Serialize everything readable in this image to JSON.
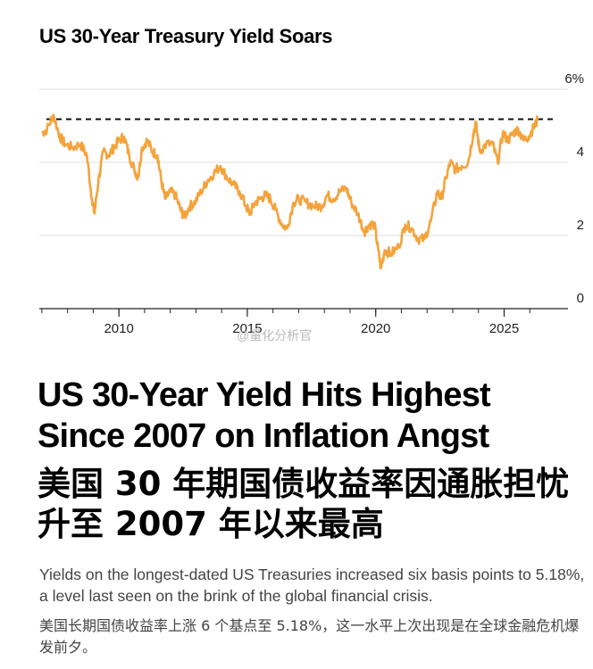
{
  "chart_title": "US 30-Year Treasury Yield Soars",
  "headline": "US 30-Year Yield Hits Highest Since 2007 on Inflation Angst",
  "headline_cn": "美国 30 年期国债收益率因通胀担忧升至 2007 年以来最高",
  "deck": "Yields on the longest-dated US Treasuries increased six basis points to 5.18%, a level last seen on the brink of the global financial crisis.",
  "deck_cn": "美国长期国债收益率上涨 6 个基点至 5.18%，这一水平上次出现是在全球金融危机爆发前夕。",
  "watermark": "@量化分析官",
  "colors": {
    "series": "#f4a33c",
    "grid": "#dcdcdc",
    "axis": "#222222",
    "reference": "#111111"
  },
  "chart_data": {
    "type": "line",
    "title": "US 30-Year Treasury Yield Soars",
    "xlabel": "",
    "ylabel": "",
    "xlim": [
      2006.9,
      2027.0
    ],
    "ylim": [
      0,
      6
    ],
    "y_axis_position": "right",
    "y_unit": "%",
    "yticks": [
      0,
      2,
      4,
      6
    ],
    "ytick_labels": [
      "0",
      "2",
      "4",
      "6%"
    ],
    "xticks": [
      2010,
      2015,
      2020,
      2025
    ],
    "xtick_labels": [
      "2010",
      "2015",
      "2020",
      "2025"
    ],
    "grid": true,
    "reference_line": {
      "value": 5.18,
      "style": "dashed"
    },
    "series": [
      {
        "x": [
          2007.0,
          2007.2,
          2007.45,
          2007.7,
          2007.9,
          2008.2,
          2008.5,
          2008.75,
          2008.95,
          2009.05,
          2009.2,
          2009.4,
          2009.6,
          2009.8,
          2010.0,
          2010.2,
          2010.4,
          2010.6,
          2010.75,
          2010.9,
          2011.1,
          2011.3,
          2011.5,
          2011.65,
          2011.8,
          2012.0,
          2012.2,
          2012.4,
          2012.55,
          2012.75,
          2012.95,
          2013.2,
          2013.45,
          2013.7,
          2013.95,
          2014.2,
          2014.45,
          2014.7,
          2014.95,
          2015.1,
          2015.3,
          2015.5,
          2015.7,
          2015.9,
          2016.1,
          2016.35,
          2016.55,
          2016.8,
          2017.0,
          2017.3,
          2017.6,
          2017.9,
          2018.1,
          2018.35,
          2018.6,
          2018.85,
          2019.05,
          2019.3,
          2019.55,
          2019.75,
          2019.95,
          2020.1,
          2020.2,
          2020.35,
          2020.6,
          2020.9,
          2021.15,
          2021.4,
          2021.65,
          2021.9,
          2022.15,
          2022.4,
          2022.55,
          2022.75,
          2022.9,
          2023.1,
          2023.35,
          2023.6,
          2023.8,
          2023.9,
          2024.05,
          2024.3,
          2024.55,
          2024.75,
          2024.95,
          2025.15,
          2025.35,
          2025.55,
          2025.75,
          2025.95,
          2026.15,
          2026.3
        ],
        "values": [
          4.8,
          4.9,
          5.3,
          4.7,
          4.5,
          4.4,
          4.5,
          4.2,
          3.0,
          2.6,
          3.5,
          4.3,
          4.2,
          4.4,
          4.6,
          4.7,
          4.2,
          3.8,
          3.6,
          4.4,
          4.6,
          4.3,
          4.2,
          3.5,
          3.0,
          3.2,
          3.1,
          2.7,
          2.5,
          2.8,
          2.9,
          3.2,
          3.5,
          3.7,
          3.9,
          3.6,
          3.4,
          3.2,
          2.8,
          2.6,
          2.9,
          3.0,
          3.1,
          3.0,
          2.7,
          2.3,
          2.2,
          2.9,
          3.0,
          2.9,
          2.8,
          2.8,
          3.1,
          3.0,
          3.2,
          3.3,
          2.9,
          2.6,
          2.1,
          2.3,
          2.3,
          1.6,
          1.1,
          1.6,
          1.5,
          1.7,
          2.3,
          2.2,
          1.9,
          1.9,
          2.4,
          3.2,
          3.0,
          3.6,
          4.0,
          3.8,
          3.9,
          4.0,
          4.8,
          5.05,
          4.3,
          4.5,
          4.5,
          4.0,
          4.8,
          4.6,
          4.8,
          4.9,
          4.6,
          4.7,
          4.95,
          5.15
        ]
      }
    ]
  }
}
